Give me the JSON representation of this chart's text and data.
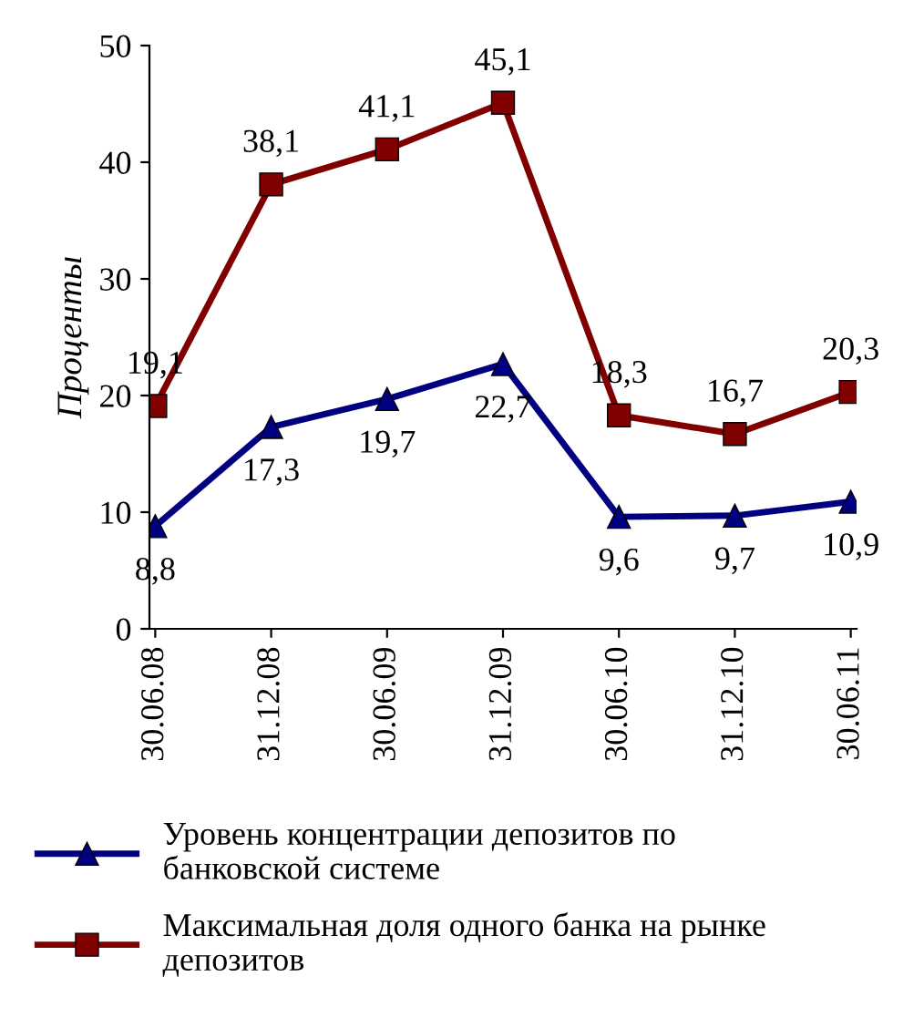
{
  "chart_data": {
    "type": "line",
    "ylabel": "Проценты",
    "categories": [
      "30.06.08",
      "31.12.08",
      "30.06.09",
      "31.12.09",
      "30.06.10",
      "31.12.10",
      "30.06.11"
    ],
    "series": [
      {
        "name": "Уровень концентрации депозитов по\nбанковской системе",
        "color": "#000080",
        "marker": "triangle",
        "values": [
          8.8,
          17.3,
          19.7,
          22.7,
          9.6,
          9.7,
          10.9
        ],
        "value_labels": [
          "8,8",
          "17,3",
          "19,7",
          "22,7",
          "9,6",
          "9,7",
          "10,9"
        ]
      },
      {
        "name": "Максимальная доля одного банка на рынке\nдепозитов",
        "color": "#800000",
        "marker": "square",
        "values": [
          19.1,
          38.1,
          41.1,
          45.1,
          18.3,
          16.7,
          20.3
        ],
        "value_labels": [
          "19,1",
          "38,1",
          "41,1",
          "45,1",
          "18,3",
          "16,7",
          "20,3"
        ]
      }
    ],
    "ylim": [
      0,
      50
    ],
    "yticks": [
      0,
      10,
      20,
      30,
      40,
      50
    ],
    "grid": false,
    "legend": "bottom",
    "line_style": "solid"
  }
}
